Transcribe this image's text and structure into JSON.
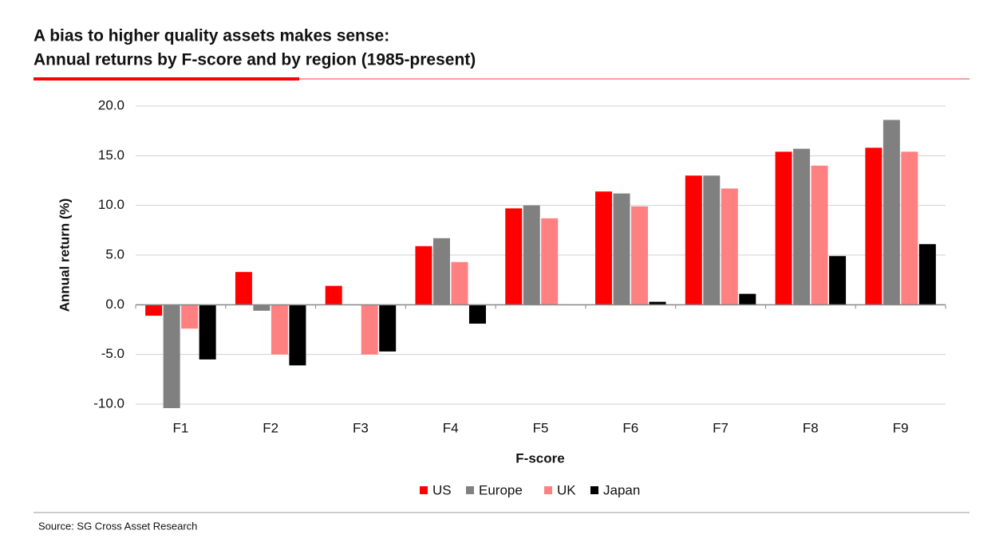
{
  "chart_data": {
    "type": "bar",
    "title": "A bias to higher quality assets makes sense:",
    "subtitle": "Annual returns by F-score and by region (1985-present)",
    "x_label": "F-score",
    "y_label": "Annual return (%)",
    "source": "Source: SG Cross Asset Research",
    "categories": [
      "F1",
      "F2",
      "F3",
      "F4",
      "F5",
      "F6",
      "F7",
      "F8",
      "F9"
    ],
    "series": [
      {
        "name": "US",
        "color": "#ff0000",
        "values": [
          -1.1,
          3.3,
          1.9,
          5.9,
          9.7,
          11.4,
          13.0,
          15.4,
          15.8
        ]
      },
      {
        "name": "Europe",
        "color": "#808080",
        "values": [
          -10.4,
          -0.6,
          0,
          6.7,
          10.0,
          11.2,
          13.0,
          15.7,
          18.6
        ]
      },
      {
        "name": "UK",
        "color": "#ff8080",
        "values": [
          -2.4,
          -5.0,
          -5.0,
          4.3,
          8.7,
          9.9,
          11.7,
          14.0,
          15.4
        ]
      },
      {
        "name": "Japan",
        "color": "#000000",
        "values": [
          -5.5,
          -6.1,
          -4.7,
          -1.9,
          0,
          0.3,
          1.1,
          4.9,
          6.1
        ]
      }
    ],
    "ylim": [
      -10.4,
      20
    ],
    "yticks": [
      {
        "value": -10,
        "label": "-10.0"
      },
      {
        "value": -5,
        "label": "-5.0"
      },
      {
        "value": 0,
        "label": "0.0"
      },
      {
        "value": 5,
        "label": "5.0"
      },
      {
        "value": 10,
        "label": "10.0"
      },
      {
        "value": 15,
        "label": "15.0"
      },
      {
        "value": 20,
        "label": "20.0"
      }
    ],
    "grid": true,
    "legend": "bottom"
  }
}
